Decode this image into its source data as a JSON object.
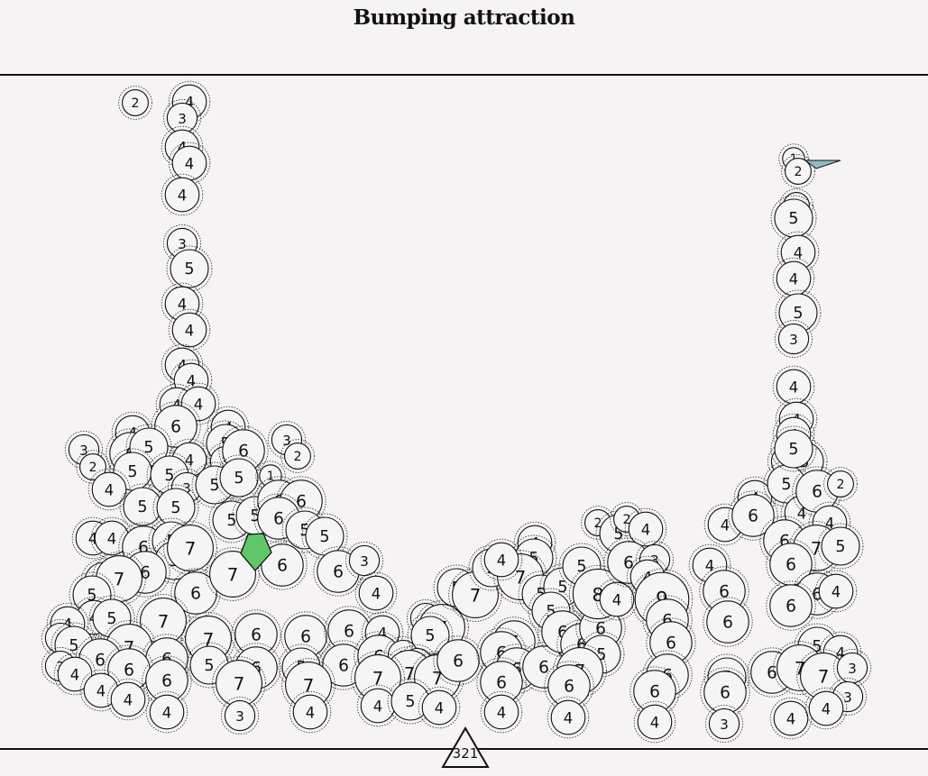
{
  "title": "Bumping attraction",
  "counter": "321",
  "colors": {
    "background": "#f5f3f4",
    "ball_fill": "#f6f5f6",
    "stroke": "#111111",
    "player_fill": "#5fc66a",
    "pointer_fill": "#8fbcc4"
  },
  "balls": [
    [
      150,
      114,
      2
    ],
    [
      210,
      113,
      4
    ],
    [
      202,
      131,
      3
    ],
    [
      202,
      163,
      4
    ],
    [
      210,
      181,
      4
    ],
    [
      202,
      216,
      4
    ],
    [
      202,
      270,
      3
    ],
    [
      210,
      298,
      5
    ],
    [
      202,
      337,
      4
    ],
    [
      210,
      366,
      4
    ],
    [
      202,
      405,
      4
    ],
    [
      212,
      422,
      4
    ],
    [
      196,
      449,
      4
    ],
    [
      220,
      448,
      4
    ],
    [
      195,
      473,
      6
    ],
    [
      147,
      480,
      4
    ],
    [
      253,
      474,
      4
    ],
    [
      250,
      492,
      5
    ],
    [
      93,
      499,
      3
    ],
    [
      103,
      518,
      2
    ],
    [
      145,
      503,
      6
    ],
    [
      165,
      496,
      5
    ],
    [
      210,
      510,
      4
    ],
    [
      250,
      512,
      3
    ],
    [
      270,
      500,
      6
    ],
    [
      318,
      488,
      3
    ],
    [
      330,
      506,
      2
    ],
    [
      147,
      523,
      5
    ],
    [
      121,
      543,
      4
    ],
    [
      188,
      527,
      5
    ],
    [
      207,
      541,
      3
    ],
    [
      238,
      538,
      5
    ],
    [
      265,
      530,
      5
    ],
    [
      300,
      528,
      1
    ],
    [
      158,
      562,
      5
    ],
    [
      195,
      563,
      5
    ],
    [
      257,
      577,
      5
    ],
    [
      283,
      572,
      5
    ],
    [
      309,
      556,
      6
    ],
    [
      334,
      556,
      6
    ],
    [
      309,
      575,
      6
    ],
    [
      338,
      588,
      5
    ],
    [
      360,
      595,
      5
    ],
    [
      103,
      597,
      4
    ],
    [
      124,
      597,
      4
    ],
    [
      159,
      607,
      6
    ],
    [
      190,
      600,
      5
    ],
    [
      193,
      622,
      5
    ],
    [
      211,
      608,
      7
    ],
    [
      161,
      635,
      6
    ],
    [
      115,
      645,
      5
    ],
    [
      132,
      642,
      7
    ],
    [
      102,
      660,
      5
    ],
    [
      217,
      658,
      6
    ],
    [
      258,
      637,
      7
    ],
    [
      313,
      627,
      6
    ],
    [
      375,
      634,
      6
    ],
    [
      404,
      622,
      3
    ],
    [
      417,
      658,
      4
    ],
    [
      104,
      685,
      4
    ],
    [
      124,
      686,
      5
    ],
    [
      75,
      692,
      4
    ],
    [
      67,
      708,
      3
    ],
    [
      82,
      716,
      5
    ],
    [
      181,
      689,
      7
    ],
    [
      231,
      709,
      7
    ],
    [
      284,
      704,
      6
    ],
    [
      143,
      718,
      7
    ],
    [
      111,
      732,
      6
    ],
    [
      185,
      731,
      6
    ],
    [
      67,
      739,
      3
    ],
    [
      83,
      748,
      4
    ],
    [
      143,
      743,
      6
    ],
    [
      185,
      755,
      6
    ],
    [
      232,
      738,
      5
    ],
    [
      284,
      741,
      6
    ],
    [
      265,
      758,
      7
    ],
    [
      112,
      766,
      4
    ],
    [
      142,
      776,
      4
    ],
    [
      185,
      790,
      4
    ],
    [
      266,
      794,
      3
    ],
    [
      339,
      706,
      6
    ],
    [
      387,
      700,
      6
    ],
    [
      334,
      740,
      5
    ],
    [
      381,
      738,
      6
    ],
    [
      342,
      760,
      7
    ],
    [
      344,
      790,
      4
    ],
    [
      424,
      702,
      4
    ],
    [
      420,
      728,
      6
    ],
    [
      447,
      727,
      3
    ],
    [
      472,
      686,
      3
    ],
    [
      490,
      696,
      7
    ],
    [
      477,
      705,
      5
    ],
    [
      463,
      736,
      3
    ],
    [
      454,
      747,
      7
    ],
    [
      419,
      752,
      7
    ],
    [
      485,
      752,
      7
    ],
    [
      508,
      733,
      6
    ],
    [
      419,
      783,
      4
    ],
    [
      455,
      778,
      5
    ],
    [
      487,
      785,
      4
    ],
    [
      506,
      652,
      5
    ],
    [
      527,
      660,
      7
    ],
    [
      545,
      630,
      5
    ],
    [
      593,
      602,
      4
    ],
    [
      592,
      619,
      5
    ],
    [
      577,
      640,
      7
    ],
    [
      600,
      659,
      5
    ],
    [
      624,
      651,
      5
    ],
    [
      611,
      678,
      5
    ],
    [
      556,
      621,
      4
    ],
    [
      570,
      712,
      6
    ],
    [
      556,
      724,
      6
    ],
    [
      573,
      742,
      6
    ],
    [
      556,
      757,
      6
    ],
    [
      556,
      790,
      4
    ],
    [
      603,
      740,
      6
    ],
    [
      624,
      701,
      6
    ],
    [
      645,
      715,
      6
    ],
    [
      666,
      697,
      6
    ],
    [
      667,
      726,
      5
    ],
    [
      643,
      744,
      7
    ],
    [
      631,
      761,
      6
    ],
    [
      630,
      796,
      4
    ],
    [
      645,
      628,
      5
    ],
    [
      663,
      580,
      2
    ],
    [
      686,
      592,
      5
    ],
    [
      695,
      576,
      2
    ],
    [
      716,
      587,
      4
    ],
    [
      663,
      659,
      8
    ],
    [
      684,
      665,
      4
    ],
    [
      697,
      624,
      6
    ],
    [
      726,
      621,
      3
    ],
    [
      718,
      640,
      4
    ],
    [
      734,
      665,
      9
    ],
    [
      740,
      688,
      6
    ],
    [
      744,
      713,
      6
    ],
    [
      740,
      749,
      6
    ],
    [
      726,
      767,
      6
    ],
    [
      726,
      801,
      4
    ],
    [
      787,
      627,
      4
    ],
    [
      803,
      656,
      6
    ],
    [
      807,
      690,
      6
    ],
    [
      804,
      582,
      4
    ],
    [
      837,
      552,
      4
    ],
    [
      835,
      572,
      6
    ],
    [
      872,
      512,
      3
    ],
    [
      892,
      512,
      5
    ],
    [
      872,
      537,
      5
    ],
    [
      889,
      569,
      4
    ],
    [
      906,
      545,
      6
    ],
    [
      932,
      537,
      2
    ],
    [
      920,
      580,
      4
    ],
    [
      870,
      600,
      6
    ],
    [
      905,
      608,
      7
    ],
    [
      932,
      606,
      5
    ],
    [
      877,
      626,
      6
    ],
    [
      906,
      659,
      6
    ],
    [
      927,
      656,
      4
    ],
    [
      877,
      672,
      6
    ],
    [
      880,
      176,
      1
    ],
    [
      885,
      190,
      2
    ],
    [
      883,
      228,
      2
    ],
    [
      880,
      242,
      5
    ],
    [
      885,
      280,
      4
    ],
    [
      880,
      309,
      4
    ],
    [
      885,
      347,
      5
    ],
    [
      880,
      376,
      3
    ],
    [
      880,
      429,
      4
    ],
    [
      883,
      465,
      4
    ],
    [
      880,
      482,
      4
    ],
    [
      880,
      498,
      5
    ],
    [
      906,
      717,
      5
    ],
    [
      932,
      724,
      4
    ],
    [
      856,
      746,
      6
    ],
    [
      887,
      741,
      7
    ],
    [
      913,
      750,
      7
    ],
    [
      945,
      741,
      3
    ],
    [
      940,
      773,
      3
    ],
    [
      806,
      751,
      5
    ],
    [
      804,
      768,
      6
    ],
    [
      803,
      803,
      3
    ],
    [
      877,
      797,
      4
    ],
    [
      916,
      786,
      4
    ]
  ],
  "player": {
    "shape": "green-pentagon",
    "points": [
      [
        267,
        614
      ],
      [
        275,
        593
      ],
      [
        292,
        592
      ],
      [
        301,
        613
      ],
      [
        283,
        633
      ]
    ]
  },
  "pointer": {
    "shape": "teal-arrow",
    "points": [
      [
        893,
        178
      ],
      [
        932,
        178
      ],
      [
        905,
        187
      ]
    ]
  }
}
